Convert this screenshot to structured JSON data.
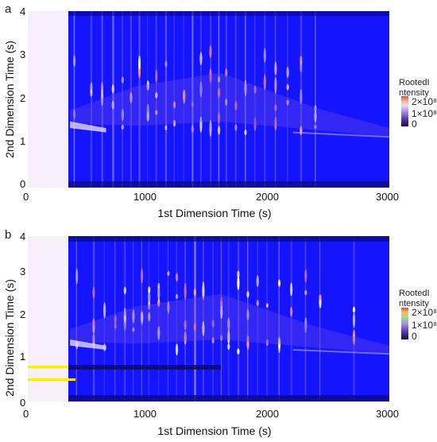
{
  "chart_data": [
    {
      "type": "heatmap",
      "panel": "a",
      "xlabel": "1st Dimension Time (s)",
      "ylabel": "2nd Dimension Time (s)",
      "xlim": [
        0,
        3000
      ],
      "ylim": [
        0,
        4
      ],
      "x_ticks": [
        "0",
        "1000",
        "2000",
        "3000"
      ],
      "y_ticks": [
        "0",
        "1",
        "2",
        "3",
        "4"
      ],
      "legend_title": "RootedIntensity",
      "legend_title_lines": [
        "RootedI",
        "ntensity"
      ],
      "legend_ticks": [
        {
          "value": 200000000,
          "label": "2×10⁸"
        },
        {
          "value": 100000000,
          "label": "1×10⁸"
        },
        {
          "value": 0,
          "label": "0"
        }
      ],
      "colorscale": [
        "#1a0a4a",
        "#3a2a8a",
        "#7a5ad0",
        "#c8b0ff",
        "#ffd6a0",
        "#ff6a5a",
        "#ff3a3a"
      ],
      "background_color": "#1414ff",
      "data_region_x": [
        350,
        3000
      ],
      "bright_streak_times": [
        380,
        520,
        610,
        700,
        780,
        850,
        920,
        990,
        1060,
        1140,
        1210,
        1290,
        1360,
        1430,
        1510,
        1580,
        1640,
        1720,
        1800,
        1880,
        1960,
        2050,
        2150,
        2260,
        2380
      ]
    },
    {
      "type": "heatmap",
      "panel": "b",
      "xlabel": "1st Dimension Time (s)",
      "ylabel": "2nd Dimension Time (s)",
      "xlim": [
        0,
        3000
      ],
      "ylim": [
        0,
        4
      ],
      "x_ticks": [
        "0",
        "1000",
        "2000",
        "3000"
      ],
      "y_ticks": [
        "0",
        "1",
        "2",
        "3",
        "4"
      ],
      "legend_title": "RootedIntensity",
      "legend_title_lines": [
        "RootedI",
        "ntensity"
      ],
      "legend_ticks": [
        {
          "value": 200000000,
          "label": "2×10⁸"
        },
        {
          "value": 100000000,
          "label": "1×10⁸"
        },
        {
          "value": 0,
          "label": "0"
        }
      ],
      "colorscale": [
        "#1a0a4a",
        "#3a2a8a",
        "#7a5ad0",
        "#c8b0ff",
        "#ffd6a0",
        "#8ad06a",
        "#ff3a3a"
      ],
      "background_color": "#1414ff",
      "data_region_x": [
        350,
        3000
      ],
      "bright_streak_times": [
        400,
        540,
        630,
        720,
        800,
        870,
        940,
        1000,
        1080,
        1160,
        1230,
        1300,
        1380,
        1450,
        1530,
        1600,
        1660,
        1740,
        1820,
        1900,
        1980,
        2080,
        2180,
        2300,
        2420,
        2700
      ]
    }
  ]
}
